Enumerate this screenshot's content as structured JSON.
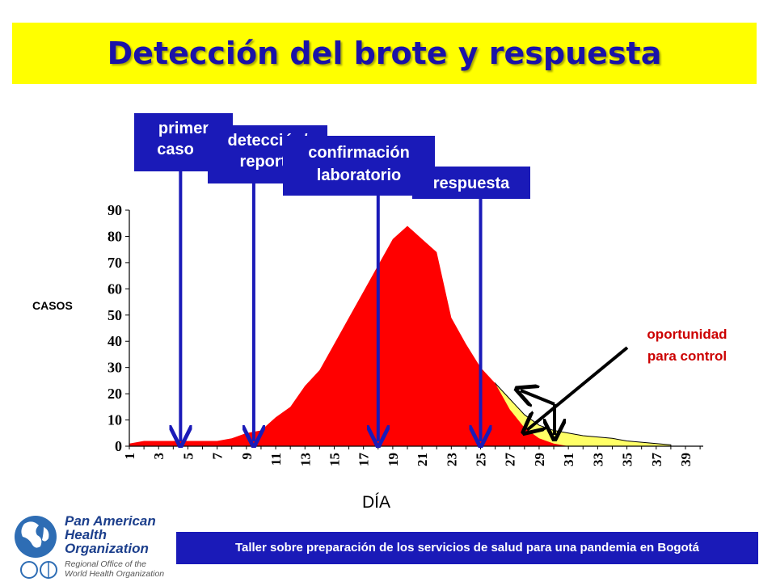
{
  "title": "Detección del brote y respuesta",
  "annotations": {
    "box1": {
      "line1": "primer",
      "line2": "caso"
    },
    "box2": {
      "line1": "detección/",
      "line2": "reporte"
    },
    "box3": {
      "line1": "confirmación",
      "line2": "laboratorio"
    },
    "box4": {
      "line1": "respuesta"
    },
    "opportunity_line1": "oportunidad",
    "opportunity_line2": "para control"
  },
  "footer": "Taller sobre preparación de los servicios de salud para una pandemia en Bogotá",
  "logo": {
    "name_line1": "Pan American",
    "name_line2": "Health",
    "name_line3": "Organization",
    "sub_line1": "Regional Office of the",
    "sub_line2": "World Health Organization"
  },
  "colors": {
    "title_bg": "#ffff00",
    "title_text": "#1a12a8",
    "box_bg": "#1a1ab8",
    "epidemic_fill": "#ff0000",
    "control_fill": "#ffff66",
    "opportunity_text": "#cc0000"
  },
  "chart_data": {
    "type": "area",
    "xlabel": "DÍA",
    "ylabel": "CASOS",
    "ylim": [
      0,
      90
    ],
    "yticks": [
      0,
      10,
      20,
      30,
      40,
      50,
      60,
      70,
      80,
      90
    ],
    "xlim": [
      1,
      39
    ],
    "xticks": [
      1,
      3,
      5,
      7,
      9,
      11,
      13,
      15,
      17,
      19,
      21,
      23,
      25,
      27,
      29,
      31,
      33,
      35,
      37,
      39
    ],
    "series": [
      {
        "x": [
          1,
          2,
          3,
          4,
          5,
          6,
          7,
          8,
          9,
          10,
          11,
          12,
          13,
          14,
          15,
          16,
          17,
          18,
          19,
          20,
          21,
          22,
          23,
          24,
          25,
          26,
          27,
          28,
          29,
          30,
          31,
          32,
          33,
          34,
          35,
          36,
          37,
          38
        ],
        "values": [
          1,
          2,
          2,
          2,
          2,
          2,
          2,
          3,
          5,
          6,
          11,
          15,
          23,
          29,
          39,
          49,
          59,
          69,
          79,
          84,
          79,
          74,
          49,
          39,
          30,
          24,
          14,
          7,
          3,
          1,
          0,
          0,
          0,
          0,
          0,
          0,
          0,
          0
        ],
        "color": "#ff0000"
      },
      {
        "x": [
          26,
          27,
          28,
          29,
          30,
          31,
          32,
          33,
          34,
          35,
          36,
          37,
          38
        ],
        "values": [
          24,
          18,
          12,
          8,
          6,
          5,
          4,
          3.5,
          3,
          2,
          1.5,
          1,
          0.5
        ],
        "color": "#ffff66"
      }
    ],
    "event_days": [
      4.5,
      9.5,
      18,
      25
    ]
  }
}
